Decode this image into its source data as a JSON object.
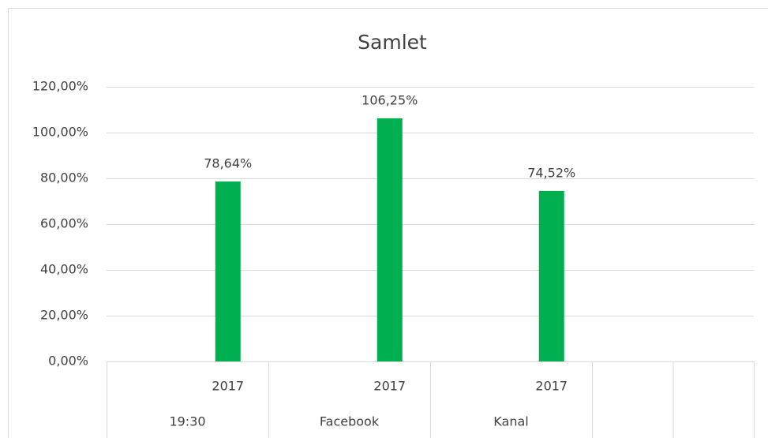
{
  "chart_data": {
    "type": "bar",
    "title": "Samlet",
    "categories": [
      null,
      "2017",
      null,
      "2017",
      null,
      "2017",
      null,
      null
    ],
    "groups": [
      "19:30",
      "Facebook",
      "Kanal"
    ],
    "values": [
      null,
      78.64,
      null,
      106.25,
      null,
      74.52,
      null,
      null
    ],
    "value_labels": [
      null,
      "78,64%",
      null,
      "106,25%",
      null,
      "74,52%",
      null,
      null
    ],
    "color": "#00b050",
    "ylim": [
      0,
      120
    ],
    "yticks": [
      {
        "value": 0,
        "label": "0,00%"
      },
      {
        "value": 20,
        "label": "20,00%"
      },
      {
        "value": 40,
        "label": "40,00%"
      },
      {
        "value": 60,
        "label": "60,00%"
      },
      {
        "value": 80,
        "label": "80,00%"
      },
      {
        "value": 100,
        "label": "100,00%"
      },
      {
        "value": 120,
        "label": "120,00%"
      }
    ],
    "grid": true
  }
}
